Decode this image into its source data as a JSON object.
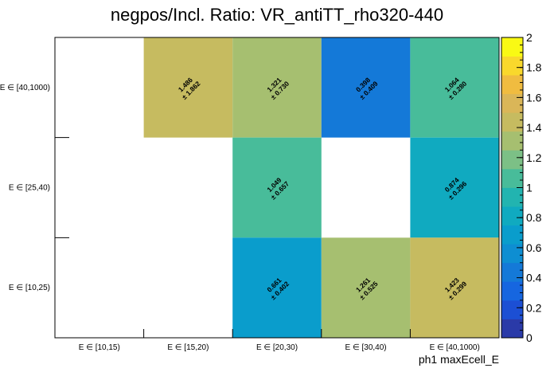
{
  "chart_data": {
    "type": "heatmap",
    "title": "negpos/Incl. Ratio: VR_antiTT_rho320-440",
    "xlabel": "ph1 maxEcell_E",
    "ylabel": "",
    "x_categories": [
      "E ∈ [10,15)",
      "E ∈ [15,20)",
      "E ∈ [20,30)",
      "E ∈ [30,40)",
      "E ∈ [40,1000)"
    ],
    "y_categories": [
      "E ∈ [10,25)",
      "E ∈ [25,40)",
      "E ∈ [40,1000)"
    ],
    "z_range": [
      0,
      2
    ],
    "colorbar_ticks": [
      "0",
      "0.2",
      "0.4",
      "0.6",
      "0.8",
      "1",
      "1.2",
      "1.4",
      "1.6",
      "1.8",
      "2"
    ],
    "cells": [
      {
        "x": 1,
        "y": 2,
        "value": 1.486,
        "label": "1.486",
        "error": "± 1.862"
      },
      {
        "x": 2,
        "y": 2,
        "value": 1.321,
        "label": "1.321",
        "error": "± 0.730"
      },
      {
        "x": 3,
        "y": 2,
        "value": 0.398,
        "label": "0.398",
        "error": "± 0.409"
      },
      {
        "x": 4,
        "y": 2,
        "value": 1.064,
        "label": "1.064",
        "error": "± 0.280"
      },
      {
        "x": 2,
        "y": 1,
        "value": 1.049,
        "label": "1.049",
        "error": "± 0.657"
      },
      {
        "x": 4,
        "y": 1,
        "value": 0.874,
        "label": "0.874",
        "error": "± 0.296"
      },
      {
        "x": 2,
        "y": 0,
        "value": 0.661,
        "label": "0.661",
        "error": "± 0.402"
      },
      {
        "x": 3,
        "y": 0,
        "value": 1.261,
        "label": "1.261",
        "error": "± 0.525"
      },
      {
        "x": 4,
        "y": 0,
        "value": 1.423,
        "label": "1.423",
        "error": "± 0.299"
      }
    ],
    "palette": [
      "#2a3aa8",
      "#1c4fd4",
      "#1666e0",
      "#1479d8",
      "#0e8ed2",
      "#0a9dcc",
      "#10aac0",
      "#22b4b0",
      "#48bc9a",
      "#7cc086",
      "#a6bf70",
      "#c6bb60",
      "#dab658",
      "#f0bc40",
      "#f9d82c",
      "#f9f914"
    ]
  }
}
